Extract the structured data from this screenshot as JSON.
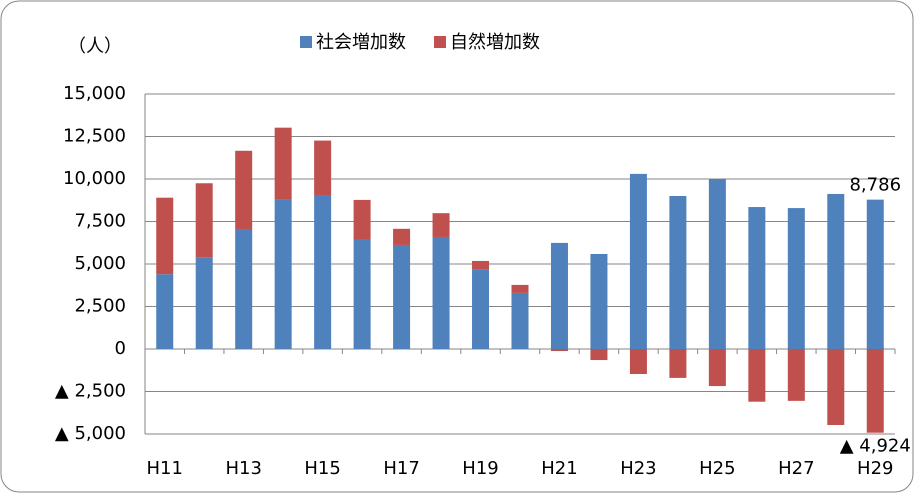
{
  "chart_data": {
    "type": "stacked-bar",
    "y_axis_label": "（人）",
    "categories": [
      "H11",
      null,
      "H13",
      null,
      "H15",
      null,
      "H17",
      null,
      "H19",
      null,
      "H21",
      null,
      "H23",
      null,
      "H25",
      null,
      "H27",
      null,
      "H29"
    ],
    "series": [
      {
        "name": "社会増加数",
        "color": "#4f81bd",
        "values": [
          4400,
          5400,
          7060,
          8820,
          9060,
          6470,
          6120,
          6590,
          4700,
          3300,
          6240,
          5590,
          10300,
          9000,
          10000,
          8350,
          8290,
          9120,
          8786
        ],
        "value_labels": [
          null,
          null,
          null,
          null,
          null,
          null,
          null,
          null,
          null,
          null,
          null,
          null,
          null,
          null,
          null,
          null,
          null,
          null,
          "8,786"
        ]
      },
      {
        "name": "自然増加数",
        "color": "#c0504d",
        "values": [
          4500,
          4350,
          4600,
          4200,
          3200,
          2300,
          950,
          1400,
          480,
          470,
          -120,
          -650,
          -1470,
          -1700,
          -2180,
          -3100,
          -3050,
          -4470,
          -4924
        ],
        "value_labels": [
          null,
          null,
          null,
          null,
          null,
          null,
          null,
          null,
          null,
          null,
          null,
          null,
          null,
          null,
          null,
          null,
          null,
          null,
          "▲ 4,924"
        ]
      }
    ],
    "ylim": [
      -5000,
      15000
    ],
    "yticks": [
      {
        "value": -5000,
        "label": "▲ 5,000"
      },
      {
        "value": -2500,
        "label": "▲ 2,500"
      },
      0,
      {
        "value": 2500,
        "label": "2,500"
      },
      {
        "value": 5000,
        "label": "5,000"
      },
      {
        "value": 7500,
        "label": "7,500"
      },
      {
        "value": 10000,
        "label": "10,000"
      },
      {
        "value": 12500,
        "label": "12,500"
      },
      {
        "value": 15000,
        "label": "15,000"
      }
    ],
    "grid": true
  }
}
